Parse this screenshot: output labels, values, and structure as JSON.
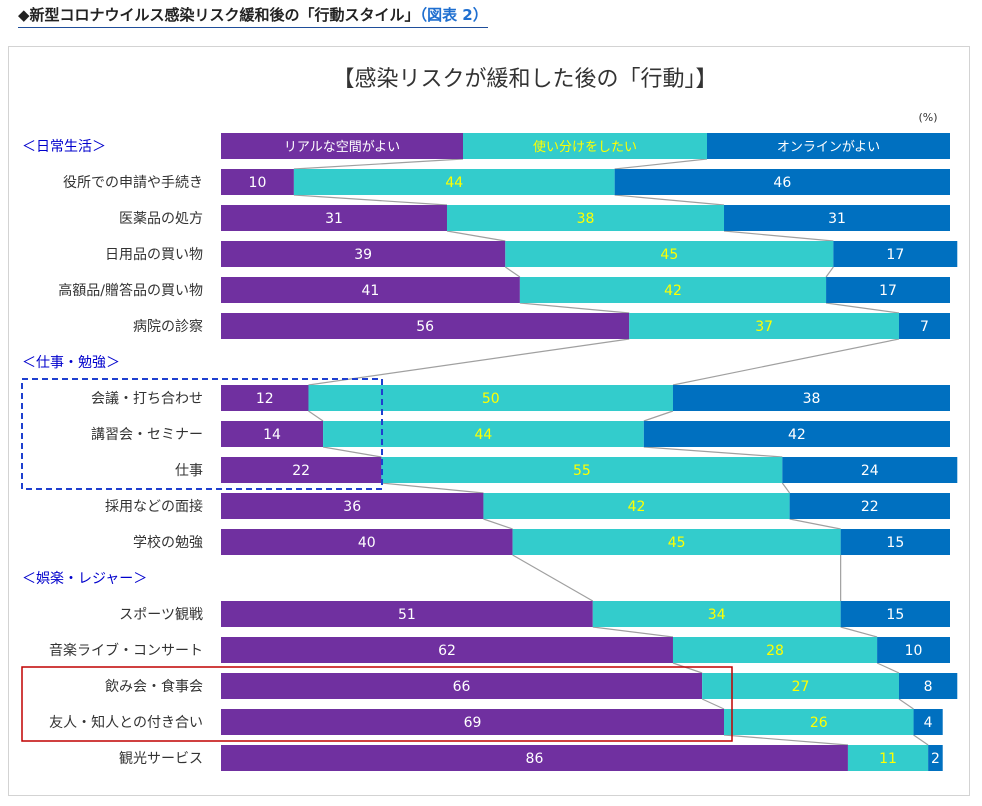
{
  "heading": {
    "marker": "◆",
    "text": "新型コロナウイルス感染リスク緩和後の「行動スタイル」",
    "figure_ref": "（図表 2）"
  },
  "colors": {
    "real": "#7030a0",
    "mixed": "#33cccc",
    "online": "#0070c0",
    "mixed_label": "#ffff00",
    "label_text": "#ffffff",
    "group_label": "#0000cc",
    "connector": "#a0a0a0",
    "highlight_blue": "#1f3fcf",
    "highlight_red": "#c00000"
  },
  "chart_data": {
    "type": "bar",
    "orientation": "horizontal-stacked-100",
    "title": "【感染リスクが緩和した後の「行動」】",
    "unit_label": "(%)",
    "legend": [
      "リアルな空間がよい",
      "使い分けをしたい",
      "オンラインがよい"
    ],
    "series_names": [
      "リアルな空間がよい",
      "使い分けをしたい",
      "オンラインがよい"
    ],
    "groups": [
      {
        "name": "＜日常生活＞",
        "items": [
          {
            "label": "役所での申請や手続き",
            "values": [
              10,
              44,
              46
            ]
          },
          {
            "label": "医薬品の処方",
            "values": [
              31,
              38,
              31
            ]
          },
          {
            "label": "日用品の買い物",
            "values": [
              39,
              45,
              17
            ]
          },
          {
            "label": "高額品/贈答品の買い物",
            "values": [
              41,
              42,
              17
            ]
          },
          {
            "label": "病院の診察",
            "values": [
              56,
              37,
              7
            ]
          }
        ]
      },
      {
        "name": "＜仕事・勉強＞",
        "items": [
          {
            "label": "会議・打ち合わせ",
            "values": [
              12,
              50,
              38
            ]
          },
          {
            "label": "講習会・セミナー",
            "values": [
              14,
              44,
              42
            ]
          },
          {
            "label": "仕事",
            "values": [
              22,
              55,
              24
            ]
          },
          {
            "label": "採用などの面接",
            "values": [
              36,
              42,
              22
            ]
          },
          {
            "label": "学校の勉強",
            "values": [
              40,
              45,
              15
            ]
          }
        ]
      },
      {
        "name": "＜娯楽・レジャー＞",
        "items": [
          {
            "label": "スポーツ観戦",
            "values": [
              51,
              34,
              15
            ]
          },
          {
            "label": "音楽ライブ・コンサート",
            "values": [
              62,
              28,
              10
            ]
          },
          {
            "label": "飲み会・食事会",
            "values": [
              66,
              27,
              8
            ]
          },
          {
            "label": "友人・知人との付き合い",
            "values": [
              69,
              26,
              4
            ]
          },
          {
            "label": "観光サービス",
            "values": [
              86,
              11,
              2
            ]
          }
        ]
      }
    ],
    "highlights": [
      {
        "items": [
          "会議・打ち合わせ",
          "講習会・セミナー",
          "仕事"
        ],
        "style": "dashed",
        "color": "blue"
      },
      {
        "items": [
          "飲み会・食事会",
          "友人・知人との付き合い"
        ],
        "style": "solid",
        "color": "red"
      }
    ]
  }
}
